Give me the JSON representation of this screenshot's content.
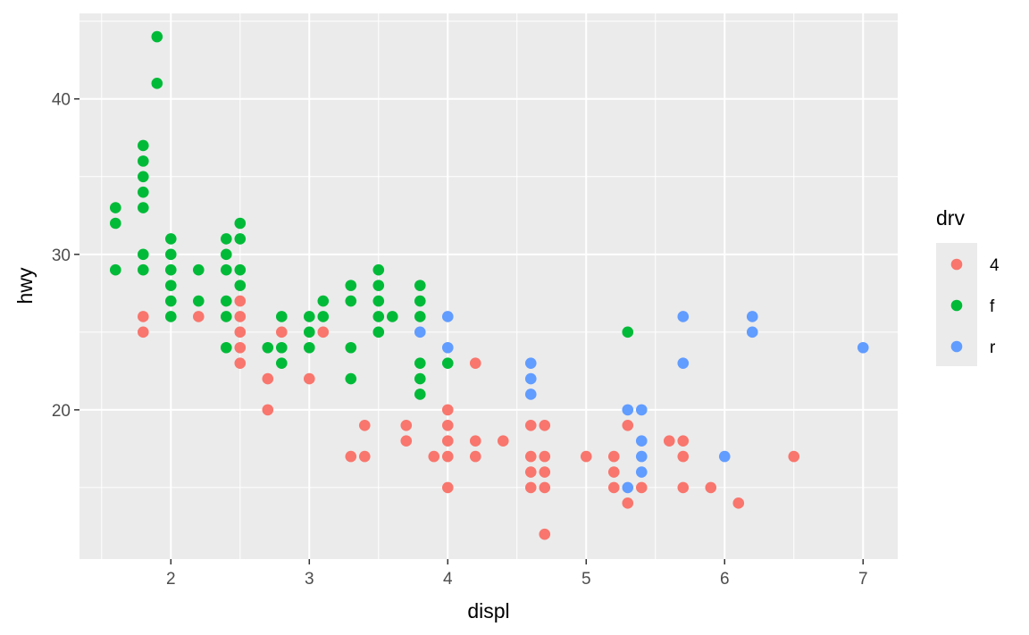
{
  "chart_data": {
    "type": "scatter",
    "xlabel": "displ",
    "ylabel": "hwy",
    "xlim": [
      1.34,
      7.25
    ],
    "ylim": [
      10.4,
      45.5
    ],
    "x_ticks": [
      2,
      3,
      4,
      5,
      6,
      7
    ],
    "y_ticks": [
      20,
      30,
      40
    ],
    "x_tick_labels": [
      "2",
      "3",
      "4",
      "5",
      "6",
      "7"
    ],
    "y_tick_labels": [
      "20",
      "30",
      "40"
    ],
    "grid": true,
    "legend": {
      "title": "drv",
      "placement": "right"
    },
    "series": [
      {
        "name": "4",
        "color": "#F8766D",
        "points": [
          [
            1.8,
            26
          ],
          [
            1.8,
            25
          ],
          [
            2.2,
            26
          ],
          [
            2.5,
            27
          ],
          [
            2.5,
            26
          ],
          [
            2.5,
            25
          ],
          [
            2.5,
            24
          ],
          [
            2.5,
            23
          ],
          [
            2.7,
            22
          ],
          [
            2.7,
            20
          ],
          [
            2.8,
            25
          ],
          [
            3.0,
            22
          ],
          [
            3.1,
            25
          ],
          [
            3.3,
            17
          ],
          [
            3.4,
            19
          ],
          [
            3.4,
            17
          ],
          [
            3.7,
            19
          ],
          [
            3.7,
            18
          ],
          [
            3.9,
            17
          ],
          [
            4.0,
            20
          ],
          [
            4.0,
            19
          ],
          [
            4.0,
            18
          ],
          [
            4.0,
            17
          ],
          [
            4.0,
            15
          ],
          [
            4.2,
            23
          ],
          [
            4.2,
            18
          ],
          [
            4.2,
            17
          ],
          [
            4.4,
            18
          ],
          [
            4.6,
            19
          ],
          [
            4.6,
            17
          ],
          [
            4.6,
            16
          ],
          [
            4.6,
            15
          ],
          [
            4.7,
            19
          ],
          [
            4.7,
            17
          ],
          [
            4.7,
            16
          ],
          [
            4.7,
            15
          ],
          [
            4.7,
            12
          ],
          [
            5.0,
            17
          ],
          [
            5.2,
            17
          ],
          [
            5.2,
            16
          ],
          [
            5.2,
            15
          ],
          [
            5.3,
            19
          ],
          [
            5.3,
            14
          ],
          [
            5.4,
            15
          ],
          [
            5.6,
            18
          ],
          [
            5.7,
            18
          ],
          [
            5.7,
            17
          ],
          [
            5.7,
            15
          ],
          [
            5.9,
            15
          ],
          [
            6.1,
            14
          ],
          [
            6.5,
            17
          ]
        ]
      },
      {
        "name": "f",
        "color": "#00BA38",
        "points": [
          [
            1.6,
            33
          ],
          [
            1.6,
            32
          ],
          [
            1.6,
            29
          ],
          [
            1.8,
            37
          ],
          [
            1.8,
            36
          ],
          [
            1.8,
            35
          ],
          [
            1.8,
            34
          ],
          [
            1.8,
            33
          ],
          [
            1.8,
            30
          ],
          [
            1.8,
            29
          ],
          [
            1.9,
            44
          ],
          [
            1.9,
            41
          ],
          [
            2.0,
            31
          ],
          [
            2.0,
            30
          ],
          [
            2.0,
            29
          ],
          [
            2.0,
            28
          ],
          [
            2.0,
            27
          ],
          [
            2.0,
            26
          ],
          [
            2.2,
            29
          ],
          [
            2.2,
            27
          ],
          [
            2.4,
            31
          ],
          [
            2.4,
            30
          ],
          [
            2.4,
            29
          ],
          [
            2.4,
            27
          ],
          [
            2.4,
            26
          ],
          [
            2.4,
            24
          ],
          [
            2.5,
            32
          ],
          [
            2.5,
            31
          ],
          [
            2.5,
            29
          ],
          [
            2.5,
            28
          ],
          [
            2.7,
            24
          ],
          [
            2.8,
            26
          ],
          [
            2.8,
            24
          ],
          [
            2.8,
            23
          ],
          [
            3.0,
            26
          ],
          [
            3.0,
            25
          ],
          [
            3.0,
            24
          ],
          [
            3.1,
            27
          ],
          [
            3.1,
            26
          ],
          [
            3.3,
            28
          ],
          [
            3.3,
            27
          ],
          [
            3.3,
            24
          ],
          [
            3.3,
            22
          ],
          [
            3.5,
            29
          ],
          [
            3.5,
            28
          ],
          [
            3.5,
            27
          ],
          [
            3.5,
            26
          ],
          [
            3.5,
            25
          ],
          [
            3.6,
            26
          ],
          [
            3.8,
            28
          ],
          [
            3.8,
            27
          ],
          [
            3.8,
            26
          ],
          [
            3.8,
            23
          ],
          [
            3.8,
            22
          ],
          [
            3.8,
            21
          ],
          [
            4.0,
            23
          ],
          [
            5.3,
            25
          ]
        ]
      },
      {
        "name": "r",
        "color": "#619CFF",
        "points": [
          [
            3.8,
            25
          ],
          [
            4.0,
            26
          ],
          [
            4.0,
            24
          ],
          [
            4.6,
            23
          ],
          [
            4.6,
            22
          ],
          [
            4.6,
            21
          ],
          [
            5.3,
            20
          ],
          [
            5.3,
            15
          ],
          [
            5.4,
            20
          ],
          [
            5.4,
            18
          ],
          [
            5.4,
            17
          ],
          [
            5.4,
            16
          ],
          [
            5.7,
            26
          ],
          [
            5.7,
            23
          ],
          [
            6.0,
            17
          ],
          [
            6.2,
            26
          ],
          [
            6.2,
            25
          ],
          [
            7.0,
            24
          ]
        ]
      }
    ]
  }
}
